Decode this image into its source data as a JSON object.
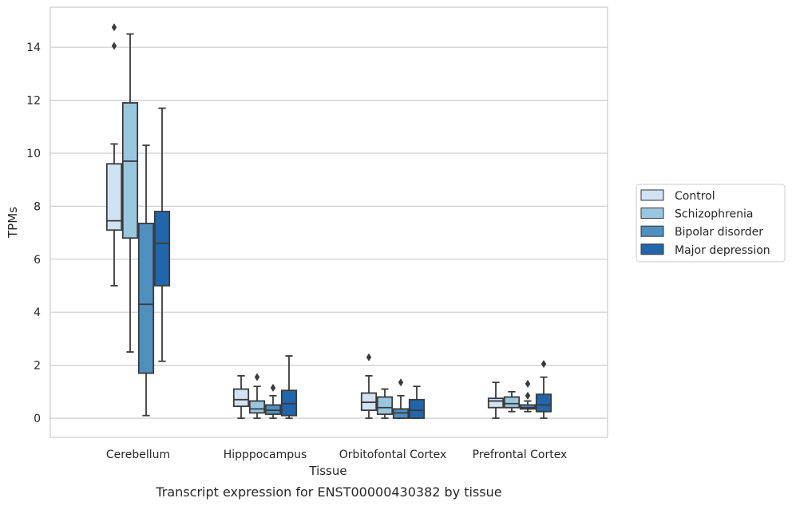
{
  "chart_data": {
    "type": "box",
    "title": "",
    "caption": "Transcript expression for ENST00000430382 by tissue",
    "xlabel": "Tissue",
    "ylabel": "TPMs",
    "ylim": [
      -0.7,
      15.5
    ],
    "yticks": [
      0,
      2,
      4,
      6,
      8,
      10,
      12,
      14
    ],
    "grid": "horizontal",
    "legend_position": "right",
    "categories": [
      "Cerebellum",
      "Hipppocampus",
      "Orbitofontal Cortex",
      "Prefrontal Cortex"
    ],
    "series": [
      {
        "name": "Control",
        "color": "#d1e2f2",
        "boxes": [
          {
            "whislo": 5.0,
            "q1": 7.1,
            "med": 7.45,
            "q3": 9.6,
            "whishi": 10.35,
            "fliers": [
              14.05,
              14.75
            ]
          },
          {
            "whislo": 0.0,
            "q1": 0.45,
            "med": 0.7,
            "q3": 1.1,
            "whishi": 1.6,
            "fliers": []
          },
          {
            "whislo": 0.0,
            "q1": 0.3,
            "med": 0.6,
            "q3": 0.95,
            "whishi": 1.6,
            "fliers": [
              2.3
            ]
          },
          {
            "whislo": 0.0,
            "q1": 0.4,
            "med": 0.65,
            "q3": 0.75,
            "whishi": 1.35,
            "fliers": []
          }
        ]
      },
      {
        "name": "Schizophrenia",
        "color": "#9ac7e0",
        "boxes": [
          {
            "whislo": 2.5,
            "q1": 6.8,
            "med": 9.7,
            "q3": 11.9,
            "whishi": 14.5,
            "fliers": []
          },
          {
            "whislo": 0.0,
            "q1": 0.2,
            "med": 0.35,
            "q3": 0.65,
            "whishi": 1.2,
            "fliers": [
              1.55
            ]
          },
          {
            "whislo": 0.0,
            "q1": 0.15,
            "med": 0.4,
            "q3": 0.8,
            "whishi": 1.1,
            "fliers": []
          },
          {
            "whislo": 0.25,
            "q1": 0.4,
            "med": 0.55,
            "q3": 0.8,
            "whishi": 1.0,
            "fliers": []
          }
        ]
      },
      {
        "name": "Bipolar disorder",
        "color": "#4f8fc0",
        "boxes": [
          {
            "whislo": 0.1,
            "q1": 1.7,
            "med": 4.3,
            "q3": 7.35,
            "whishi": 10.3,
            "fliers": []
          },
          {
            "whislo": 0.0,
            "q1": 0.15,
            "med": 0.3,
            "q3": 0.5,
            "whishi": 0.85,
            "fliers": [
              1.15
            ]
          },
          {
            "whislo": 0.0,
            "q1": 0.0,
            "med": 0.2,
            "q3": 0.35,
            "whishi": 0.85,
            "fliers": [
              1.35
            ]
          },
          {
            "whislo": 0.25,
            "q1": 0.35,
            "med": 0.4,
            "q3": 0.5,
            "whishi": 0.65,
            "fliers": [
              0.85,
              1.3
            ]
          }
        ]
      },
      {
        "name": "Major depression",
        "color": "#2166ac",
        "boxes": [
          {
            "whislo": 2.15,
            "q1": 5.0,
            "med": 6.6,
            "q3": 7.8,
            "whishi": 11.7,
            "fliers": []
          },
          {
            "whislo": 0.0,
            "q1": 0.1,
            "med": 0.55,
            "q3": 1.05,
            "whishi": 2.35,
            "fliers": []
          },
          {
            "whislo": 0.0,
            "q1": 0.0,
            "med": 0.3,
            "q3": 0.7,
            "whishi": 1.2,
            "fliers": []
          },
          {
            "whislo": 0.0,
            "q1": 0.25,
            "med": 0.5,
            "q3": 0.9,
            "whishi": 1.55,
            "fliers": [
              2.05
            ]
          }
        ]
      }
    ]
  }
}
